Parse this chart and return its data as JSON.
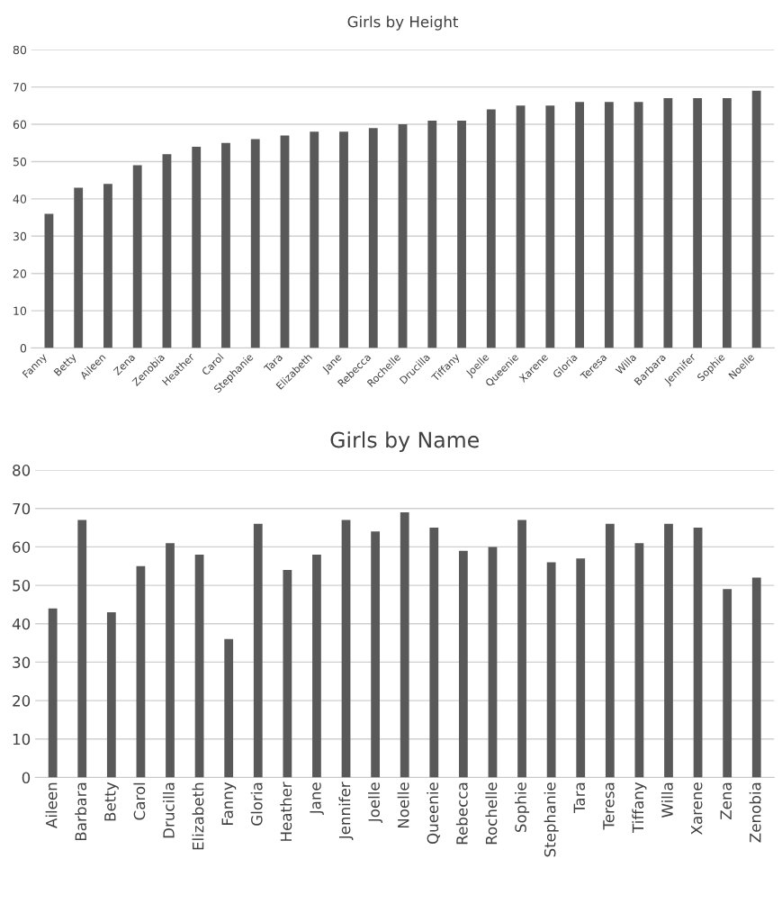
{
  "chart_data": [
    {
      "type": "bar",
      "title": "Girls by Height",
      "categories": [
        "Fanny",
        "Betty",
        "Aileen",
        "Zena",
        "Zenobia",
        "Heather",
        "Carol",
        "Stephanie",
        "Tara",
        "Elizabeth",
        "Jane",
        "Rebecca",
        "Rochelle",
        "Drucilla",
        "Tiffany",
        "Joelle",
        "Queenie",
        "Xarene",
        "Gloria",
        "Teresa",
        "Willa",
        "Barbara",
        "Jennifer",
        "Sophie",
        "Noelle"
      ],
      "values": [
        36,
        43,
        44,
        49,
        52,
        54,
        55,
        56,
        57,
        58,
        58,
        59,
        60,
        61,
        61,
        64,
        65,
        65,
        66,
        66,
        66,
        67,
        67,
        67,
        69
      ],
      "color": "#595959",
      "ylim": [
        0,
        80
      ],
      "yticks": [
        0,
        10,
        20,
        30,
        40,
        50,
        60,
        70,
        80
      ],
      "grid": "y"
    },
    {
      "type": "bar",
      "title": "Girls by Name",
      "categories": [
        "Aileen",
        "Barbara",
        "Betty",
        "Carol",
        "Drucilla",
        "Elizabeth",
        "Fanny",
        "Gloria",
        "Heather",
        "Jane",
        "Jennifer",
        "Joelle",
        "Noelle",
        "Queenie",
        "Rebecca",
        "Rochelle",
        "Sophie",
        "Stephanie",
        "Tara",
        "Teresa",
        "Tiffany",
        "Willa",
        "Xarene",
        "Zena",
        "Zenobia"
      ],
      "values": [
        44,
        67,
        43,
        55,
        61,
        58,
        36,
        66,
        54,
        58,
        67,
        64,
        69,
        65,
        59,
        60,
        67,
        56,
        57,
        66,
        61,
        66,
        65,
        49,
        52
      ],
      "color": "#595959",
      "ylim": [
        0,
        80
      ],
      "yticks": [
        0,
        10,
        20,
        30,
        40,
        50,
        60,
        70,
        80
      ],
      "grid": "y"
    }
  ]
}
